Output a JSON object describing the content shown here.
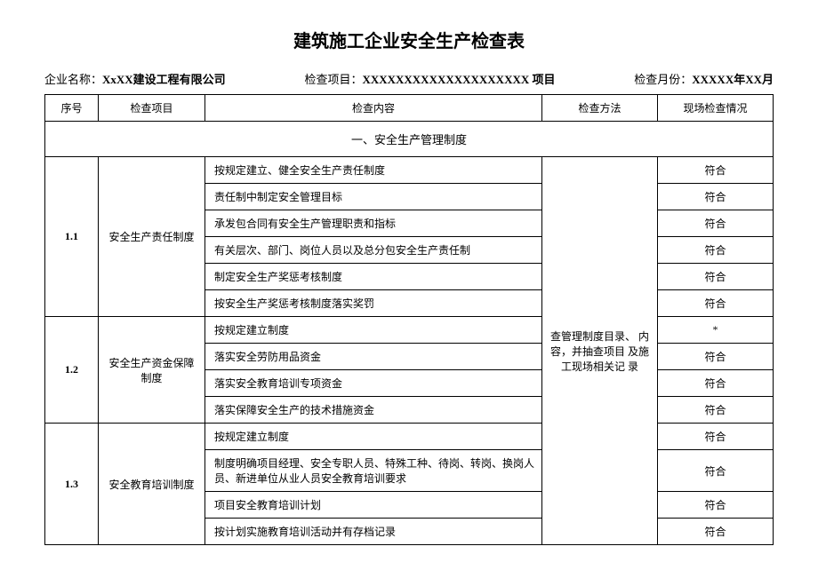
{
  "title": "建筑施工企业安全生产检查表",
  "meta": {
    "company_label": "企业名称：",
    "company_value": "XxXX建设工程有限公司",
    "project_label": "检查项目：",
    "project_value": "XXXXXXXXXXXXXXXXXXXX 项目",
    "month_label": "检查月份：",
    "month_value": "XXXXX年XX月"
  },
  "headers": {
    "idx": "序号",
    "item": "检查项目",
    "content": "检查内容",
    "method": "检查方法",
    "result": "现场检查情况"
  },
  "section1_title": "一、安全生产管理制度",
  "method_text": "查管理制度目录、 内容，并抽查项目 及施工现场相关记 录",
  "groups": [
    {
      "idx": "1.1",
      "item": "安全生产责任制度",
      "rows": [
        {
          "content": "按规定建立、健全安全生产责任制度",
          "result": "符合"
        },
        {
          "content": "责任制中制定安全管理目标",
          "result": "符合"
        },
        {
          "content": "承发包合同有安全生产管理职责和指标",
          "result": "符合"
        },
        {
          "content": "有关层次、部门、岗位人员以及总分包安全生产责任制",
          "result": "符合"
        },
        {
          "content": "制定安全生产奖惩考核制度",
          "result": "符合"
        },
        {
          "content": "按安全生产奖惩考核制度落实奖罚",
          "result": "符合"
        }
      ]
    },
    {
      "idx": "1.2",
      "item": "安全生产资金保障 制度",
      "rows": [
        {
          "content": "按规定建立制度",
          "result": "*"
        },
        {
          "content": "落实安全劳防用品资金",
          "result": "符合"
        },
        {
          "content": "落实安全教育培训专项资金",
          "result": "符合"
        },
        {
          "content": "落实保障安全生产的技术措施资金",
          "result": "符合"
        }
      ]
    },
    {
      "idx": "1.3",
      "item": "安全教育培训制度",
      "rows": [
        {
          "content": "按规定建立制度",
          "result": "符合"
        },
        {
          "content": "制度明确项目经理、安全专职人员、特殊工种、待岗、转岗、换岗人 员、新进单位从业人员安全教育培训要求",
          "result": "符合"
        },
        {
          "content": "项目安全教育培训计划",
          "result": "符合"
        },
        {
          "content": "按计划实施教育培训活动并有存档记录",
          "result": "符合"
        }
      ]
    }
  ]
}
